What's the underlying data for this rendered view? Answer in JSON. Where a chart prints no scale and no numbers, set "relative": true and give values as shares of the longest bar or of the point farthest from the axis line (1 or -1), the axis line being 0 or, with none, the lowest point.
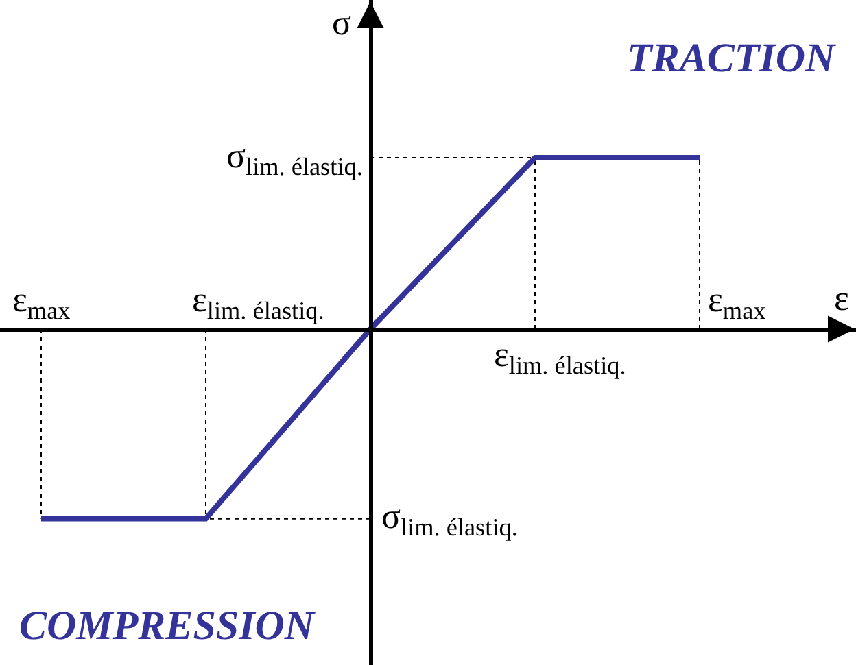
{
  "chart_data": {
    "type": "line",
    "relative": true,
    "xlabel": "ε",
    "ylabel": "σ",
    "categories": [
      null,
      null,
      null,
      null,
      null
    ],
    "series": [
      {
        "color": "#333399",
        "values": [
          -1,
          -1,
          0,
          0.904,
          0.904
        ]
      }
    ],
    "annotations": [
      "TRACTION",
      "COMPRESSION",
      "σ$_{lim. élastiq.}$",
      "σ$_{lim. élastiq.}$",
      "ε$_{max}$",
      "ε$_{lim. élastiq.}$",
      "ε$_{lim. élastiq.}$",
      "ε$_{max}$"
    ],
    "marker": "none",
    "line_style": "solid",
    "grid": false
  }
}
